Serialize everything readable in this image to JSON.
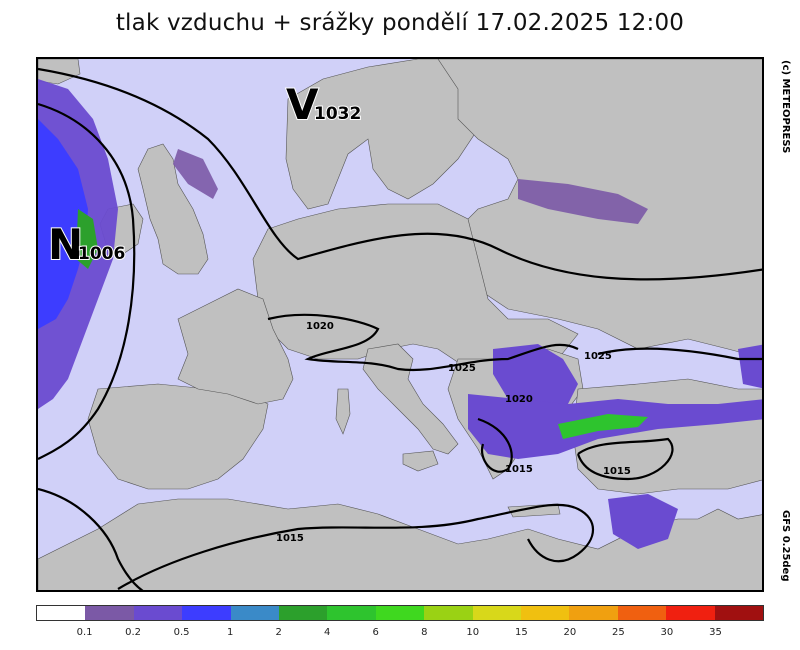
{
  "title": "tlak vzduchu + srážky pondělí 17.02.2025 12:00",
  "credit": "(c) METEOPRESS",
  "model": "GFS 0.25deg",
  "pressure_centers": [
    {
      "letter": "V",
      "value": "1032",
      "meaning": "high"
    },
    {
      "letter": "N",
      "value": "1006",
      "meaning": "low"
    }
  ],
  "isobar_labels": [
    "1020",
    "1025",
    "1025",
    "1020",
    "1015",
    "1015",
    "1015"
  ],
  "colors": {
    "sea": "#d0d0f8",
    "land": "#c0c0c0",
    "isobar": "#000000"
  },
  "legend": {
    "colors": [
      "#ffffff",
      "#7b59a6",
      "#6a4bd0",
      "#3d3dff",
      "#3a8ac8",
      "#2ca02c",
      "#2ec42e",
      "#3fd81f",
      "#9ad214",
      "#d8d81a",
      "#f0c010",
      "#f0a010",
      "#f06010",
      "#f02010",
      "#a01010"
    ],
    "labels": [
      "0.1",
      "0.2",
      "0.5",
      "1",
      "2",
      "4",
      "6",
      "8",
      "10",
      "15",
      "20",
      "25",
      "30",
      "35"
    ]
  }
}
